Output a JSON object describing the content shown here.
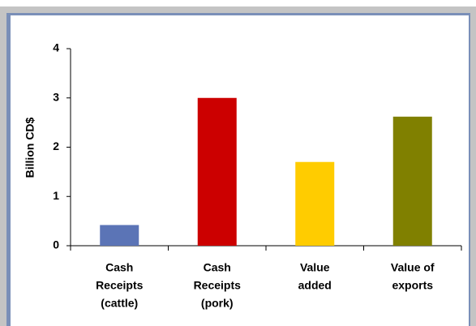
{
  "chart_data": {
    "type": "bar",
    "y_label": "Billion CD$",
    "categories": [
      [
        "Cash",
        "Receipts",
        "(cattle)"
      ],
      [
        "Cash",
        "Receipts",
        "(pork)"
      ],
      [
        "Value",
        "added"
      ],
      [
        "Value of",
        "exports"
      ]
    ],
    "values": [
      0.42,
      3.0,
      1.7,
      2.62
    ],
    "colors": [
      "#5b74b6",
      "#cc0000",
      "#ffcc00",
      "#808000"
    ],
    "ylim": [
      0,
      4
    ],
    "yticks": [
      0,
      1,
      2,
      3,
      4
    ]
  }
}
